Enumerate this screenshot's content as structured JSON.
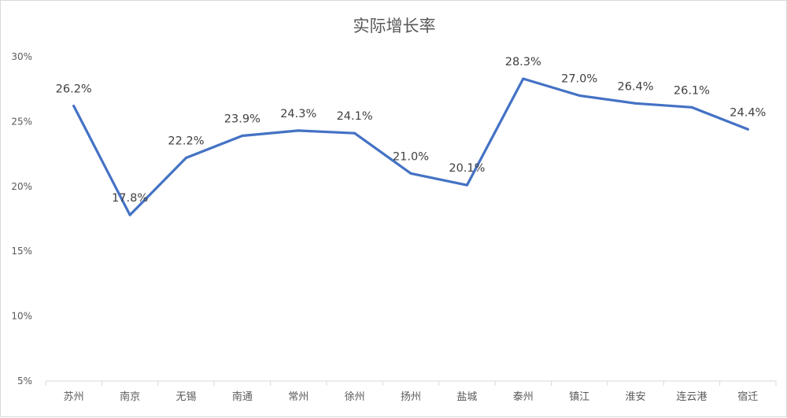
{
  "chart_data": {
    "type": "line",
    "title": "实际增长率",
    "xlabel": "",
    "ylabel": "",
    "categories": [
      "苏州",
      "南京",
      "无锡",
      "南通",
      "常州",
      "徐州",
      "扬州",
      "盐城",
      "泰州",
      "镇江",
      "淮安",
      "连云港",
      "宿迁"
    ],
    "series": [
      {
        "values": [
          26.2,
          17.8,
          22.2,
          23.9,
          24.3,
          24.1,
          21.0,
          20.1,
          28.3,
          27.0,
          26.4,
          26.1,
          24.4
        ],
        "data_labels": [
          "26.2%",
          "17.8%",
          "22.2%",
          "23.9%",
          "24.3%",
          "24.1%",
          "21.0%",
          "20.1%",
          "28.3%",
          "27.0%",
          "26.4%",
          "26.1%",
          "24.4%"
        ],
        "color": "#4472c4"
      }
    ],
    "ylim": [
      5,
      30
    ],
    "yticks": [
      5,
      10,
      15,
      20,
      25,
      30
    ],
    "ytick_labels": [
      "5%",
      "10%",
      "15%",
      "20%",
      "25%",
      "30%"
    ],
    "grid": false,
    "legend": "none",
    "axis_color": "#d9d9d9"
  }
}
